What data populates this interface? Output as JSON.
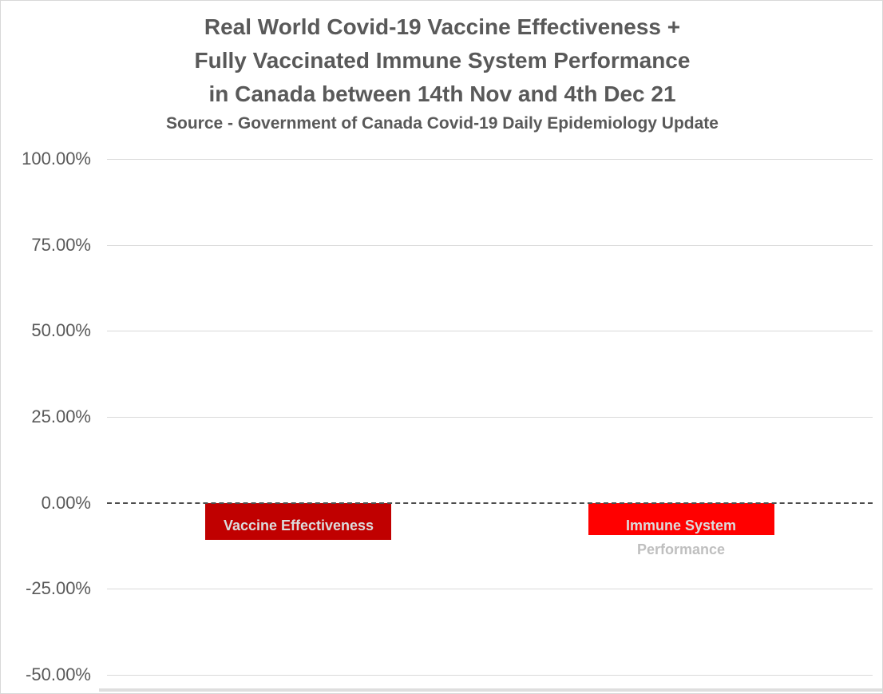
{
  "title": {
    "lines": [
      "Real World Covid-19 Vaccine Effectiveness +",
      "Fully Vaccinated Immune System Performance",
      "in Canada between 14th Nov and 4th Dec 21"
    ],
    "subtitle": "Source - Government of Canada Covid-19 Daily Epidemiology Update"
  },
  "chart_data": {
    "type": "bar",
    "title": "Real World Covid-19 Vaccine Effectiveness + Fully Vaccinated Immune System Performance in Canada between 14th Nov and 4th Dec 21",
    "subtitle": "Source - Government of Canada Covid-19 Daily Epidemiology Update",
    "categories": [
      "Vaccine Effectiveness",
      "Immune System Performance"
    ],
    "category_label_lines": [
      [
        "Vaccine Effectiveness"
      ],
      [
        "Immune System",
        "Performance"
      ]
    ],
    "values": [
      -10.6,
      -9.4
    ],
    "bar_colors": [
      "#c00000",
      "#ff0000"
    ],
    "xlabel": "",
    "ylabel": "",
    "yticks": [
      100,
      75,
      50,
      25,
      0,
      -25,
      -50
    ],
    "ytick_labels": [
      "100.00%",
      "75.00%",
      "50.00%",
      "25.00%",
      "0.00%",
      "-25.00%",
      "-50.00%"
    ],
    "ylim": [
      -57,
      100
    ],
    "grid": true,
    "zero_line_style": "dashed",
    "legend_position": "none"
  },
  "colors": {
    "bar_dark_red": "#c00000",
    "bar_red": "#ff0000",
    "title_text": "#595959",
    "axis_text": "#595959",
    "gridline": "#d9d9d9",
    "zero_line": "#4c4c4c",
    "category_label_on_bar": "#dcdcdc",
    "category_label_below": "#bfbfbf",
    "page_border": "#d8d8d8",
    "bottom_rule": "#dedede"
  }
}
